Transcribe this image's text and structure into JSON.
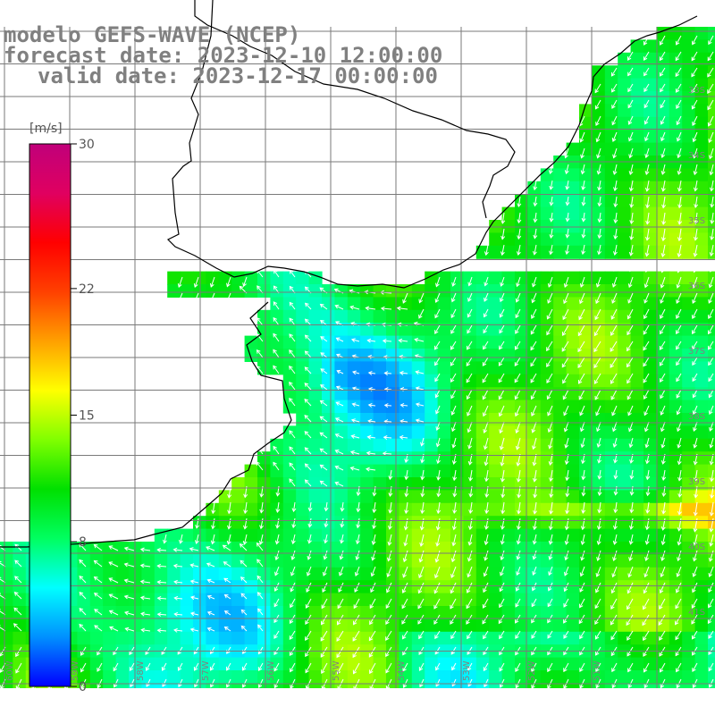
{
  "title": {
    "line1": "modelo GEFS-WAVE (NCEP)",
    "line2": "forecast date: 2023-12-10 12:00:00",
    "line3": "valid date: 2023-12-17 00:00:00"
  },
  "colorbar": {
    "unit": "[m/s]",
    "min": 0,
    "max": 30,
    "ticks": [
      {
        "label": "30",
        "value": 30
      },
      {
        "label": "22",
        "value": 22
      },
      {
        "label": "15",
        "value": 15
      },
      {
        "label": "8",
        "value": 8
      },
      {
        "label": "0",
        "value": 0
      }
    ],
    "stops": [
      "#0000ff",
      "#0090ff",
      "#00ffff",
      "#00ff60",
      "#00e000",
      "#80ff00",
      "#ffff00",
      "#ffa000",
      "#ff4000",
      "#ff0000",
      "#e00060",
      "#c0007a"
    ]
  },
  "grid": {
    "latitudes": [
      "33S",
      "34S",
      "35S",
      "36S",
      "37S",
      "38S",
      "39S",
      "40S",
      "41S"
    ],
    "longitudes": [
      "60W",
      "59W",
      "58W",
      "57W",
      "56W",
      "55W",
      "54W",
      "53W",
      "52W",
      "51W"
    ]
  },
  "colors": {
    "grid_line": "#7a7a7a",
    "coastline": "#000000",
    "arrow": "#ffffff",
    "land": "#ffffff",
    "label_gray": "#808080"
  },
  "field_description": "Wind speed shading with white arrows showing direction (mostly toward south-southwest offshore, northwest near Rio de la Plata)"
}
